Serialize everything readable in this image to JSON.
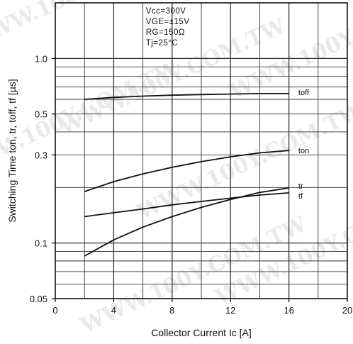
{
  "chart_data": {
    "type": "line",
    "title": "",
    "xlabel": "Collector Current Ic [A]",
    "ylabel": "Switching Time ton, tr, toff, tf [µs]",
    "xlim": [
      0,
      20
    ],
    "ylim": [
      0.05,
      2.0
    ],
    "yscale": "log",
    "x_ticks": [
      0,
      4,
      8,
      12,
      16,
      20
    ],
    "x_tick_labels": [
      "0",
      "4",
      "8",
      "12",
      "16",
      "20"
    ],
    "y_ticks": [
      0.05,
      0.1,
      0.3,
      0.5,
      1.0
    ],
    "y_tick_labels": [
      "0.05",
      "0.1",
      "0.3",
      "0.5",
      "1.0"
    ],
    "grid": true,
    "conditions": [
      "Vcc=300V",
      "VGE=±15V",
      "RG=150Ω",
      "Tj=25°C"
    ],
    "watermark": "WWW.100Y.COM.TW",
    "series": [
      {
        "name": "toff",
        "x": [
          2,
          4,
          6,
          8,
          10,
          12,
          14,
          16
        ],
        "y": [
          0.6,
          0.615,
          0.625,
          0.632,
          0.637,
          0.641,
          0.645,
          0.645
        ]
      },
      {
        "name": "ton",
        "x": [
          2,
          4,
          6,
          8,
          10,
          12,
          14,
          16
        ],
        "y": [
          0.19,
          0.215,
          0.237,
          0.257,
          0.276,
          0.293,
          0.308,
          0.317
        ]
      },
      {
        "name": "tr",
        "x": [
          2,
          4,
          6,
          8,
          10,
          12,
          14,
          16
        ],
        "y": [
          0.085,
          0.104,
          0.122,
          0.139,
          0.156,
          0.172,
          0.188,
          0.199
        ]
      },
      {
        "name": "tf",
        "x": [
          2,
          4,
          6,
          8,
          10,
          12,
          14,
          16
        ],
        "y": [
          0.139,
          0.146,
          0.153,
          0.161,
          0.168,
          0.175,
          0.182,
          0.187
        ]
      }
    ]
  }
}
